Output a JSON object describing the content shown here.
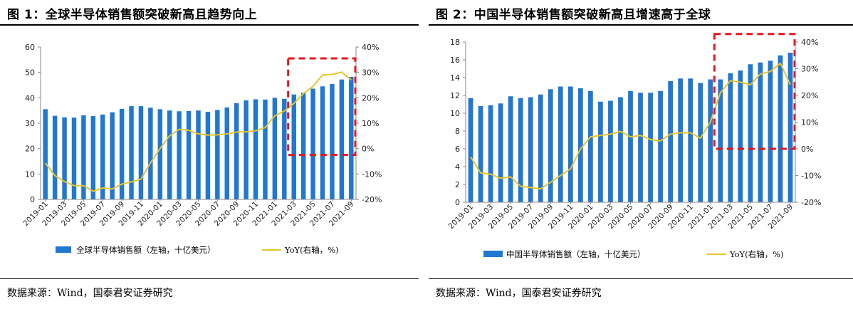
{
  "colors": {
    "bar": "#1f78d1",
    "line": "#e8c52a",
    "highlight": "#e8141c"
  },
  "figures": [
    {
      "title": "图 1：全球半导体销售额突破新高且趋势向上",
      "source": "数据来源：Wind，国泰君安证券研究"
    },
    {
      "title": "图 2：中国半导体销售额突破新高且增速高于全球",
      "source": "数据来源：Wind，国泰君安证券研究"
    }
  ],
  "chart_data": [
    {
      "type": "bar",
      "categories": [
        "2019-01",
        "2019-02",
        "2019-03",
        "2019-04",
        "2019-05",
        "2019-06",
        "2019-07",
        "2019-08",
        "2019-09",
        "2019-10",
        "2019-11",
        "2019-12",
        "2020-01",
        "2020-02",
        "2020-03",
        "2020-04",
        "2020-05",
        "2020-06",
        "2020-07",
        "2020-08",
        "2020-09",
        "2020-10",
        "2020-11",
        "2020-12",
        "2021-01",
        "2021-02",
        "2021-03",
        "2021-04",
        "2021-05",
        "2021-06",
        "2021-07",
        "2021-08",
        "2021-09"
      ],
      "x_tick_labels": [
        "2019-01",
        "2019-03",
        "2019-05",
        "2019-07",
        "2019-09",
        "2019-11",
        "2020-01",
        "2020-03",
        "2020-05",
        "2020-07",
        "2020-09",
        "2020-11",
        "2021-01",
        "2021-03",
        "2021-05",
        "2021-07",
        "2021-09"
      ],
      "series": [
        {
          "name": "全球半导体销售额（左轴，十亿美元）",
          "kind": "bar",
          "axis": "left",
          "values": [
            35.5,
            32.9,
            32.3,
            32.2,
            33.1,
            32.8,
            33.4,
            34.3,
            35.6,
            36.7,
            36.7,
            36.1,
            35.5,
            35.0,
            34.7,
            34.8,
            35.0,
            34.5,
            35.2,
            36.2,
            37.9,
            39.0,
            39.4,
            39.3,
            40.0,
            39.6,
            41.3,
            42.0,
            43.6,
            44.5,
            45.4,
            47.2,
            48.2
          ]
        },
        {
          "name": "YoY(右轴，%)",
          "kind": "line",
          "axis": "right",
          "values": [
            -5.7,
            -10.6,
            -13.0,
            -14.6,
            -14.6,
            -16.8,
            -15.5,
            -15.9,
            -14.0,
            -13.1,
            -12.0,
            -5.6,
            0.0,
            5.0,
            7.6,
            7.2,
            5.8,
            5.3,
            5.4,
            5.8,
            6.5,
            6.6,
            7.0,
            8.3,
            12.9,
            14.8,
            17.8,
            21.7,
            24.5,
            29.0,
            29.2,
            30.1,
            27.0
          ]
        }
      ],
      "left_axis": {
        "min": 0,
        "max": 60,
        "ticks": [
          "0",
          "10",
          "20",
          "30",
          "40",
          "50",
          "60"
        ]
      },
      "right_axis": {
        "min": -20,
        "max": 40,
        "ticks": [
          "-20%",
          "-10%",
          "0%",
          "10%",
          "20%",
          "30%",
          "40%"
        ]
      },
      "highlight_box": {
        "from_category": "2021-03",
        "to_category": "2021-09",
        "right_axis_range": [
          -2.5,
          35.5
        ]
      },
      "legend_position": "bottom",
      "grid": false
    },
    {
      "type": "bar",
      "categories": [
        "2019-01",
        "2019-02",
        "2019-03",
        "2019-04",
        "2019-05",
        "2019-06",
        "2019-07",
        "2019-08",
        "2019-09",
        "2019-10",
        "2019-11",
        "2019-12",
        "2020-01",
        "2020-02",
        "2020-03",
        "2020-04",
        "2020-05",
        "2020-06",
        "2020-07",
        "2020-08",
        "2020-09",
        "2020-10",
        "2020-11",
        "2020-12",
        "2021-01",
        "2021-02",
        "2021-03",
        "2021-04",
        "2021-05",
        "2021-06",
        "2021-07",
        "2021-08",
        "2021-09"
      ],
      "x_tick_labels": [
        "2019-01",
        "2019-03",
        "2019-05",
        "2019-07",
        "2019-09",
        "2019-11",
        "2020-01",
        "2020-03",
        "2020-05",
        "2020-07",
        "2020-09",
        "2020-11",
        "2021-01",
        "2021-03",
        "2021-05",
        "2021-07",
        "2021-09"
      ],
      "series": [
        {
          "name": "中国半导体销售额（左轴，十亿美元）",
          "kind": "bar",
          "axis": "left",
          "values": [
            11.7,
            10.8,
            10.9,
            11.1,
            11.9,
            11.7,
            11.8,
            12.1,
            12.7,
            13.0,
            13.0,
            12.8,
            12.5,
            11.3,
            11.4,
            11.8,
            12.5,
            12.3,
            12.3,
            12.5,
            13.6,
            13.9,
            13.9,
            13.4,
            13.8,
            13.8,
            14.5,
            14.8,
            15.5,
            15.7,
            15.9,
            16.5,
            16.8
          ]
        },
        {
          "name": "YoY(右轴，%)",
          "kind": "line",
          "axis": "right",
          "values": [
            -3.0,
            -9.0,
            -9.5,
            -11.0,
            -10.5,
            -14.0,
            -14.5,
            -15.0,
            -12.5,
            -10.0,
            -7.5,
            0.0,
            4.5,
            5.0,
            5.5,
            6.5,
            4.5,
            5.0,
            3.5,
            3.0,
            5.5,
            6.0,
            6.0,
            4.0,
            10.0,
            21.0,
            25.5,
            25.0,
            24.0,
            28.0,
            29.0,
            32.0,
            24.0
          ]
        }
      ],
      "left_axis": {
        "min": 0,
        "max": 18,
        "ticks": [
          "0",
          "2",
          "4",
          "6",
          "8",
          "10",
          "12",
          "14",
          "16",
          "18"
        ]
      },
      "right_axis": {
        "min": -20,
        "max": 40,
        "ticks": [
          "-20%",
          "-10%",
          "0%",
          "10%",
          "20%",
          "30%",
          "40%"
        ]
      },
      "highlight_box": {
        "from_category": "2021-02",
        "to_category": "2021-09",
        "right_axis_range": [
          0,
          43
        ]
      },
      "legend_position": "bottom",
      "grid": false
    }
  ]
}
